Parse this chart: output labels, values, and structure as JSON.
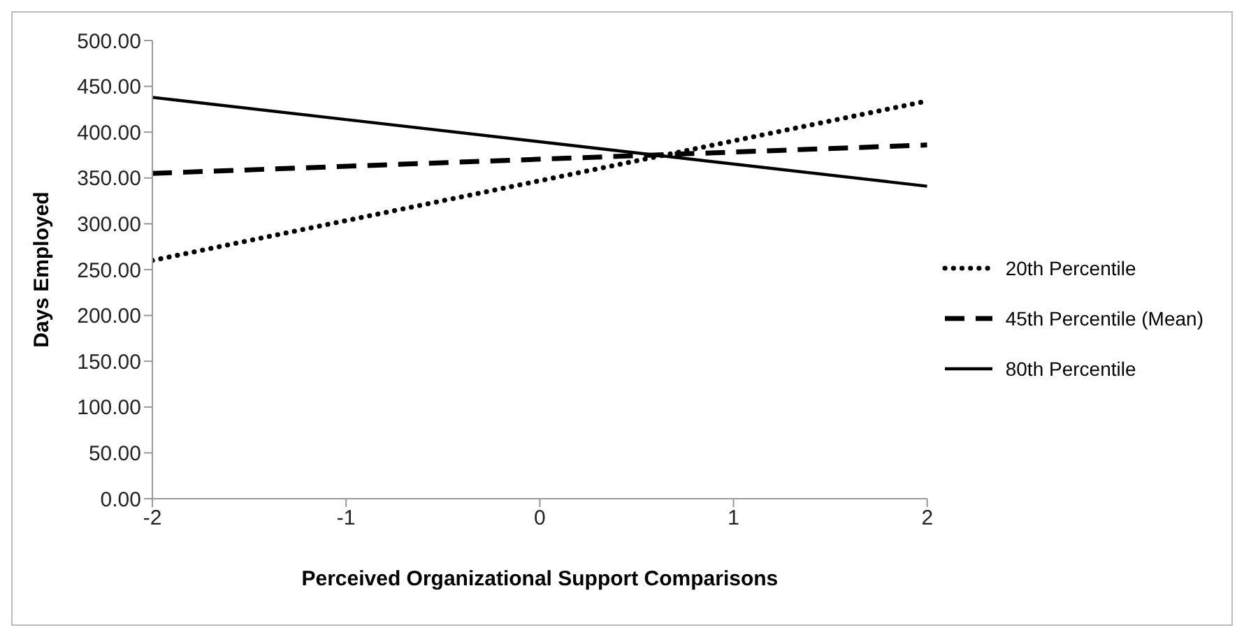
{
  "chart_data": {
    "type": "line",
    "xlabel": "Perceived Organizational Support Comparisons",
    "ylabel": "Days Employed",
    "x": [
      -2,
      2
    ],
    "series": [
      {
        "name": "20th Percentile",
        "color": "#000000",
        "line_style": "dotted",
        "values": [
          260,
          434
        ]
      },
      {
        "name": "45th Percentile (Mean)",
        "color": "#000000",
        "line_style": "dashed",
        "values": [
          355,
          386
        ]
      },
      {
        "name": "80th Percentile",
        "color": "#000000",
        "line_style": "solid",
        "values": [
          438,
          341
        ]
      }
    ],
    "xlim": [
      -2,
      2
    ],
    "xticks": [
      -2,
      -1,
      0,
      1,
      2
    ],
    "ylim": [
      0,
      500
    ],
    "yticks": [
      {
        "value": 0,
        "label": "0.00"
      },
      {
        "value": 50,
        "label": "50.00"
      },
      {
        "value": 100,
        "label": "100.00"
      },
      {
        "value": 150,
        "label": "150.00"
      },
      {
        "value": 200,
        "label": "200.00"
      },
      {
        "value": 250,
        "label": "250.00"
      },
      {
        "value": 300,
        "label": "300.00"
      },
      {
        "value": 350,
        "label": "350.00"
      },
      {
        "value": 400,
        "label": "400.00"
      },
      {
        "value": 450,
        "label": "450.00"
      },
      {
        "value": 500,
        "label": "500.00"
      }
    ],
    "legend": "right",
    "grid": false,
    "marker": "none"
  }
}
